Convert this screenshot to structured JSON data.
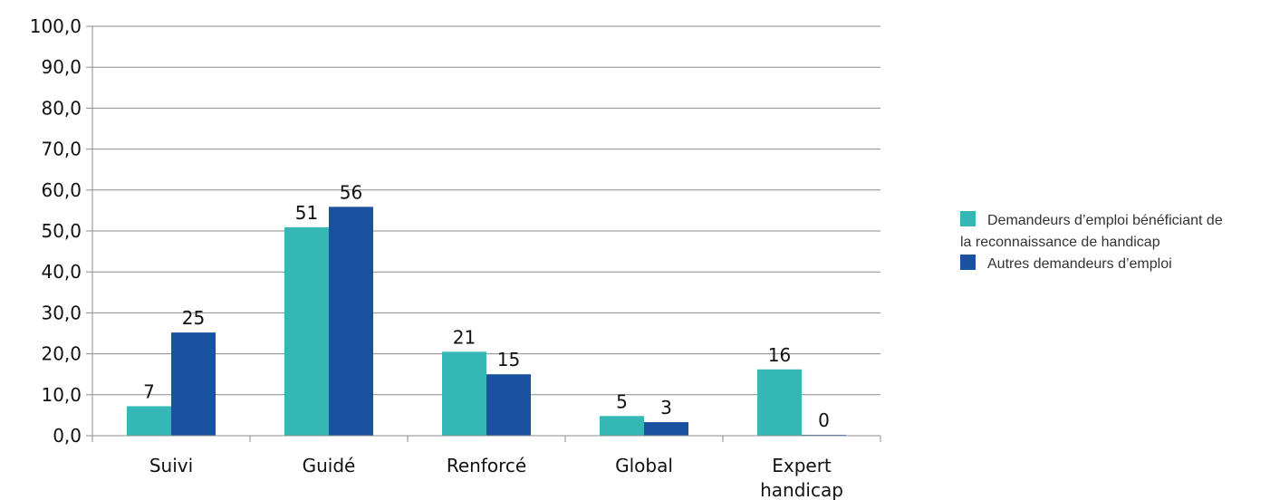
{
  "chart_data": {
    "type": "bar",
    "title": "",
    "xlabel": "",
    "ylabel": "",
    "ylim": [
      0,
      100
    ],
    "ytick_step": 10,
    "ytick_labels": [
      "0,0",
      "10,0",
      "20,0",
      "30,0",
      "40,0",
      "50,0",
      "60,0",
      "70,0",
      "80,0",
      "90,0",
      "100,0"
    ],
    "grid": true,
    "legend_position": "right",
    "categories": [
      [
        "Suivi"
      ],
      [
        "Guidé"
      ],
      [
        "Renforcé"
      ],
      [
        "Global"
      ],
      [
        "Expert",
        "handicap"
      ]
    ],
    "series": [
      {
        "name": "Demandeurs d’emploi bénéficiant de la reconnaissance  de handicap",
        "legend_lines": [
          "Demandeurs d’emploi bénéficiant de",
          "la reconnaissance  de handicap"
        ],
        "color": "#35b8b5",
        "values": [
          7.2,
          50.9,
          20.5,
          4.8,
          16.2
        ],
        "labels": [
          "7",
          "51",
          "21",
          "5",
          "16"
        ]
      },
      {
        "name": "Autres demandeurs d’emploi",
        "legend_lines": [
          "Autres demandeurs d’emploi"
        ],
        "color": "#1a529f",
        "values": [
          25.2,
          55.9,
          15.0,
          3.3,
          0.2
        ],
        "labels": [
          "25",
          "56",
          "15",
          "3",
          "0"
        ]
      }
    ]
  }
}
